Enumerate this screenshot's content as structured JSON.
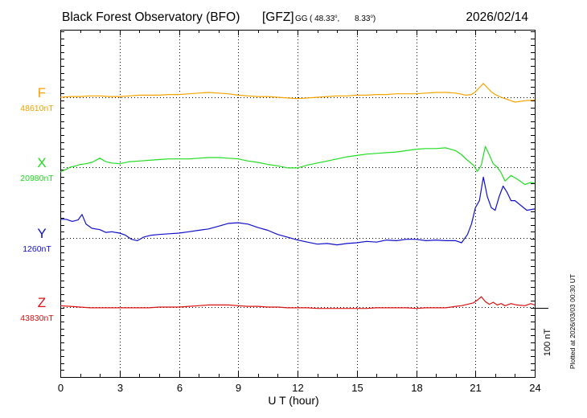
{
  "chart_data": {
    "type": "line",
    "title": "Black Forest Observatory (BFO)",
    "source_tag": "[GFZ]",
    "coord_prefix": "GG",
    "lat": "( 48.33",
    "lon": "8.33",
    "date": "2026/02/14",
    "xlabel": "U T (hour)",
    "xlim": [
      0,
      24
    ],
    "x_ticks": [
      "0",
      "3",
      "6",
      "9",
      "12",
      "15",
      "18",
      "21",
      "24"
    ],
    "scale_label": "100 nT",
    "footer": "Plotted at 2026/03/03 00:30 UT",
    "series": [
      {
        "name": "F",
        "baseline": "48610nT",
        "color": "#f5a300",
        "x": [
          0,
          0.5,
          1,
          1.5,
          2,
          2.5,
          3,
          3.5,
          4,
          4.5,
          5,
          5.5,
          6,
          6.5,
          7,
          7.5,
          8,
          8.5,
          9,
          9.5,
          10,
          10.5,
          11,
          11.5,
          12,
          12.5,
          13,
          13.5,
          14,
          14.5,
          15,
          15.5,
          16,
          16.5,
          17,
          17.5,
          18,
          18.5,
          19,
          19.5,
          20,
          20.2,
          20.5,
          20.8,
          21,
          21.2,
          21.4,
          21.6,
          21.8,
          22,
          22.3,
          22.6,
          23,
          23.5,
          24
        ],
        "values": [
          0,
          1,
          1,
          2,
          2,
          1,
          1,
          2,
          3,
          3,
          3,
          4,
          4,
          5,
          6,
          7,
          6,
          5,
          3,
          2,
          1,
          1,
          0,
          -1,
          -2,
          -1,
          0,
          1,
          2,
          2,
          3,
          3,
          4,
          4,
          5,
          5,
          5,
          6,
          7,
          7,
          6,
          5,
          3,
          4,
          8,
          14,
          20,
          14,
          8,
          4,
          0,
          -3,
          -7,
          -5,
          -4
        ]
      },
      {
        "name": "X",
        "baseline": "20980nT",
        "color": "#22dd22",
        "x": [
          0,
          0.3,
          0.5,
          0.8,
          1,
          1.3,
          1.6,
          2,
          2.3,
          2.6,
          3,
          3.5,
          4,
          4.5,
          5,
          5.5,
          6,
          6.5,
          7,
          7.5,
          8,
          8.5,
          9,
          9.5,
          10,
          10.5,
          11,
          11.5,
          12,
          12.5,
          13,
          13.5,
          14,
          14.5,
          15,
          15.5,
          16,
          16.5,
          17,
          17.5,
          18,
          18.5,
          19,
          19.5,
          20,
          20.3,
          20.6,
          20.9,
          21.1,
          21.3,
          21.5,
          21.7,
          21.9,
          22.1,
          22.3,
          22.5,
          22.8,
          23.1,
          23.5,
          23.8,
          24
        ],
        "values": [
          -7,
          -3,
          0,
          2,
          4,
          5,
          7,
          13,
          8,
          6,
          5,
          8,
          9,
          10,
          11,
          12,
          12,
          12,
          13,
          14,
          14,
          13,
          12,
          9,
          7,
          4,
          2,
          -1,
          -1,
          3,
          6,
          9,
          12,
          15,
          17,
          19,
          20,
          21,
          22,
          24,
          26,
          27,
          27,
          28,
          24,
          18,
          10,
          3,
          -6,
          3,
          30,
          18,
          5,
          0,
          -8,
          -20,
          -12,
          -17,
          -25,
          -22,
          -23
        ]
      },
      {
        "name": "Y",
        "baseline": "1260nT",
        "color": "#1010cc",
        "x": [
          0,
          0.3,
          0.6,
          0.9,
          1.1,
          1.3,
          1.6,
          2,
          2.3,
          2.6,
          3,
          3.3,
          3.6,
          3.9,
          4.2,
          4.6,
          5,
          5.5,
          6,
          6.5,
          7,
          7.5,
          8,
          8.5,
          9,
          9.5,
          10,
          10.5,
          11,
          11.5,
          12,
          12.5,
          13,
          13.5,
          14,
          14.5,
          15,
          15.5,
          16,
          16.5,
          17,
          17.5,
          18,
          18.5,
          19,
          19.5,
          20,
          20.3,
          20.6,
          20.8,
          21,
          21.2,
          21.4,
          21.6,
          21.8,
          22,
          22.2,
          22.4,
          22.6,
          22.8,
          23,
          23.3,
          23.6,
          24
        ],
        "values": [
          27,
          27,
          24,
          26,
          34,
          20,
          14,
          12,
          8,
          9,
          7,
          4,
          -2,
          -4,
          1,
          4,
          5,
          6,
          7,
          9,
          11,
          13,
          17,
          21,
          22,
          20,
          15,
          11,
          5,
          1,
          -3,
          -6,
          -9,
          -8,
          -10,
          -8,
          -7,
          -5,
          -6,
          -3,
          -4,
          -2,
          -2,
          -4,
          -3,
          -4,
          -4,
          -7,
          5,
          20,
          44,
          54,
          88,
          60,
          44,
          40,
          60,
          75,
          66,
          54,
          54,
          47,
          40,
          42
        ]
      },
      {
        "name": "Z",
        "baseline": "43830nT",
        "color": "#dd1111",
        "x": [
          0,
          0.5,
          1,
          1.5,
          2,
          2.5,
          3,
          3.5,
          4,
          4.5,
          5,
          5.5,
          6,
          6.5,
          7,
          7.5,
          8,
          8.5,
          9,
          9.5,
          10,
          10.5,
          11,
          11.5,
          12,
          12.5,
          13,
          13.5,
          14,
          14.5,
          15,
          15.5,
          16,
          16.5,
          17,
          17.5,
          18,
          18.5,
          19,
          19.5,
          20,
          20.3,
          20.6,
          20.9,
          21.1,
          21.3,
          21.5,
          21.7,
          21.9,
          22.1,
          22.3,
          22.5,
          22.8,
          23.1,
          23.5,
          23.8,
          24
        ],
        "values": [
          2,
          1,
          0,
          -1,
          -1,
          -1,
          -1,
          -1,
          -1,
          -1,
          0,
          0,
          0,
          1,
          2,
          3,
          3,
          3,
          2,
          1,
          1,
          0,
          0,
          -1,
          -1,
          -1,
          -2,
          -2,
          -2,
          -2,
          -2,
          -2,
          -1,
          -1,
          -1,
          -1,
          -2,
          -1,
          -1,
          -1,
          1,
          2,
          4,
          6,
          10,
          15,
          8,
          4,
          7,
          3,
          5,
          2,
          5,
          3,
          2,
          5,
          3
        ]
      }
    ]
  }
}
